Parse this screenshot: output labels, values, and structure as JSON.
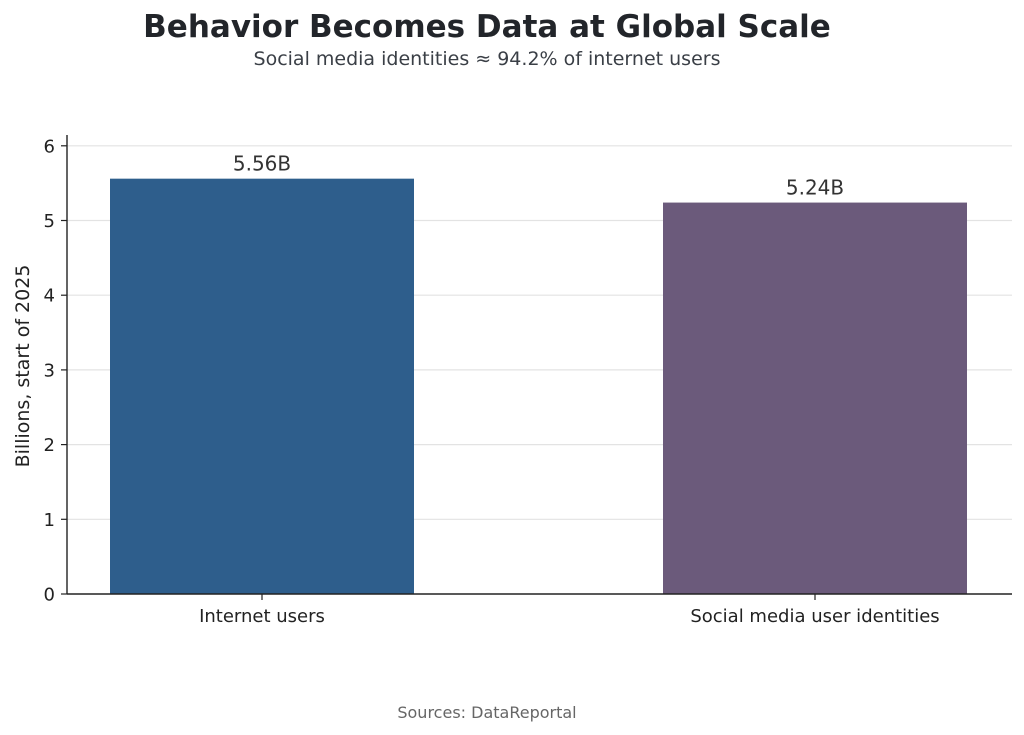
{
  "chart_data": {
    "type": "bar",
    "title": "Behavior Becomes Data at Global Scale",
    "subtitle": "Social media identities ≈ 94.2% of internet users",
    "xlabel": "",
    "ylabel": "Billions, start of 2025",
    "categories": [
      "Internet users",
      "Social media user identities"
    ],
    "values": [
      5.56,
      5.24
    ],
    "data_labels": [
      "5.56B",
      "5.24B"
    ],
    "bar_colors": [
      "#2e5e8c",
      "#6b5a7b"
    ],
    "ylim": [
      0,
      6
    ],
    "yticks": [
      0,
      1,
      2,
      3,
      4,
      5,
      6
    ],
    "grid": true,
    "grid_axis": "y",
    "legend": "none",
    "source": "Sources: DataReportal"
  },
  "colors": {
    "title": "#22252a",
    "subtitle": "#3a3f46",
    "axis": "#222222",
    "grid": "#e3e3e3",
    "tick_text": "#222222",
    "data_label": "#333333",
    "source": "#666666"
  }
}
